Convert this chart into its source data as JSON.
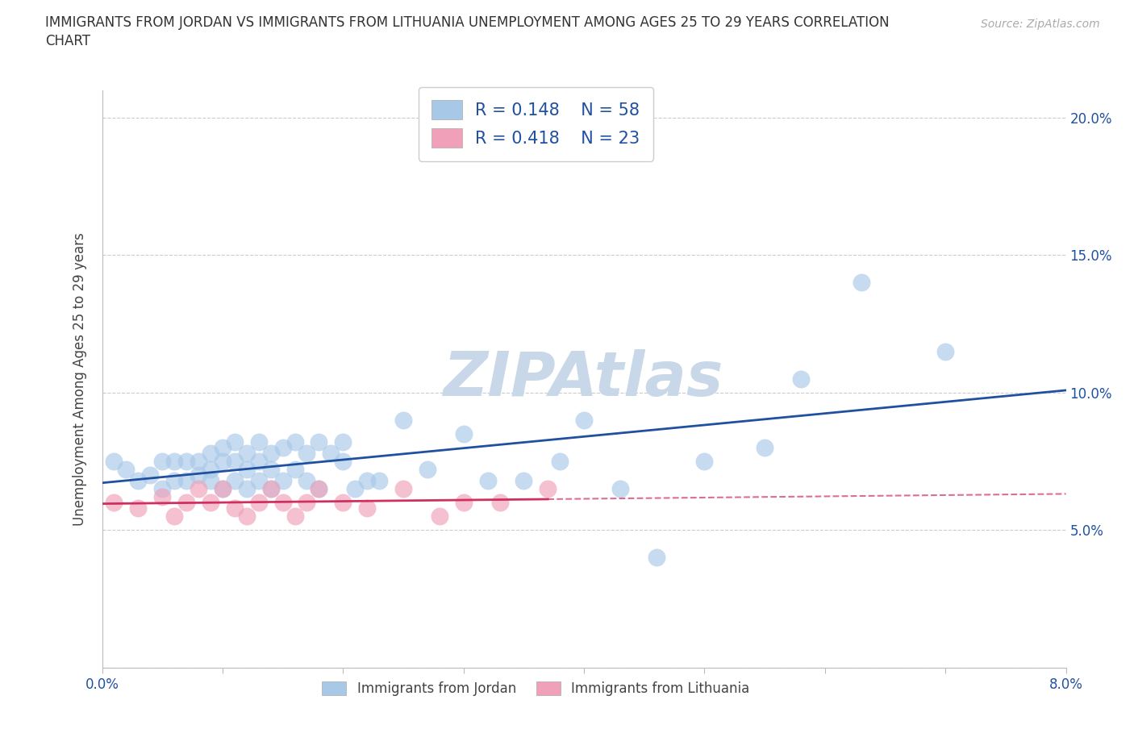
{
  "title_line1": "IMMIGRANTS FROM JORDAN VS IMMIGRANTS FROM LITHUANIA UNEMPLOYMENT AMONG AGES 25 TO 29 YEARS CORRELATION",
  "title_line2": "CHART",
  "source_text": "Source: ZipAtlas.com",
  "ylabel": "Unemployment Among Ages 25 to 29 years",
  "legend_label_1": "Immigrants from Jordan",
  "legend_label_2": "Immigrants from Lithuania",
  "r1": 0.148,
  "n1": 58,
  "r2": 0.418,
  "n2": 23,
  "xlim": [
    0.0,
    0.08
  ],
  "ylim": [
    0.0,
    0.21
  ],
  "xticks": [
    0.0,
    0.01,
    0.02,
    0.03,
    0.04,
    0.05,
    0.06,
    0.07,
    0.08
  ],
  "xtick_labels_show": [
    0.0,
    0.08
  ],
  "xtick_labels_text": {
    "0.0": "0.0%",
    "0.08": "8.0%"
  },
  "yticks": [
    0.0,
    0.05,
    0.1,
    0.15,
    0.2
  ],
  "ytick_labels": [
    "",
    "5.0%",
    "10.0%",
    "15.0%",
    "20.0%"
  ],
  "color_jordan": "#a8c8e8",
  "color_lithuania": "#f0a0b8",
  "line_color_jordan": "#2050a0",
  "line_color_lithuania": "#d03060",
  "watermark_color": "#c8d8e8",
  "jordan_x": [
    0.001,
    0.002,
    0.003,
    0.004,
    0.005,
    0.005,
    0.006,
    0.006,
    0.007,
    0.007,
    0.008,
    0.008,
    0.009,
    0.009,
    0.009,
    0.01,
    0.01,
    0.01,
    0.011,
    0.011,
    0.011,
    0.012,
    0.012,
    0.012,
    0.013,
    0.013,
    0.013,
    0.014,
    0.014,
    0.014,
    0.015,
    0.015,
    0.016,
    0.016,
    0.017,
    0.017,
    0.018,
    0.018,
    0.019,
    0.02,
    0.02,
    0.021,
    0.022,
    0.023,
    0.025,
    0.027,
    0.03,
    0.032,
    0.035,
    0.038,
    0.04,
    0.043,
    0.046,
    0.05,
    0.055,
    0.058,
    0.063,
    0.07
  ],
  "jordan_y": [
    0.075,
    0.072,
    0.068,
    0.07,
    0.065,
    0.075,
    0.068,
    0.075,
    0.068,
    0.075,
    0.07,
    0.075,
    0.068,
    0.072,
    0.078,
    0.065,
    0.075,
    0.08,
    0.068,
    0.075,
    0.082,
    0.065,
    0.072,
    0.078,
    0.068,
    0.075,
    0.082,
    0.065,
    0.072,
    0.078,
    0.068,
    0.08,
    0.072,
    0.082,
    0.068,
    0.078,
    0.065,
    0.082,
    0.078,
    0.075,
    0.082,
    0.065,
    0.068,
    0.068,
    0.09,
    0.072,
    0.085,
    0.068,
    0.068,
    0.075,
    0.09,
    0.065,
    0.04,
    0.075,
    0.08,
    0.105,
    0.14,
    0.115
  ],
  "lithuania_x": [
    0.001,
    0.003,
    0.005,
    0.006,
    0.007,
    0.008,
    0.009,
    0.01,
    0.011,
    0.012,
    0.013,
    0.014,
    0.015,
    0.016,
    0.017,
    0.018,
    0.02,
    0.022,
    0.025,
    0.028,
    0.03,
    0.033,
    0.037
  ],
  "lithuania_y": [
    0.06,
    0.058,
    0.062,
    0.055,
    0.06,
    0.065,
    0.06,
    0.065,
    0.058,
    0.055,
    0.06,
    0.065,
    0.06,
    0.055,
    0.06,
    0.065,
    0.06,
    0.058,
    0.065,
    0.055,
    0.06,
    0.06,
    0.065
  ],
  "background_color": "#ffffff",
  "grid_color": "#cccccc"
}
